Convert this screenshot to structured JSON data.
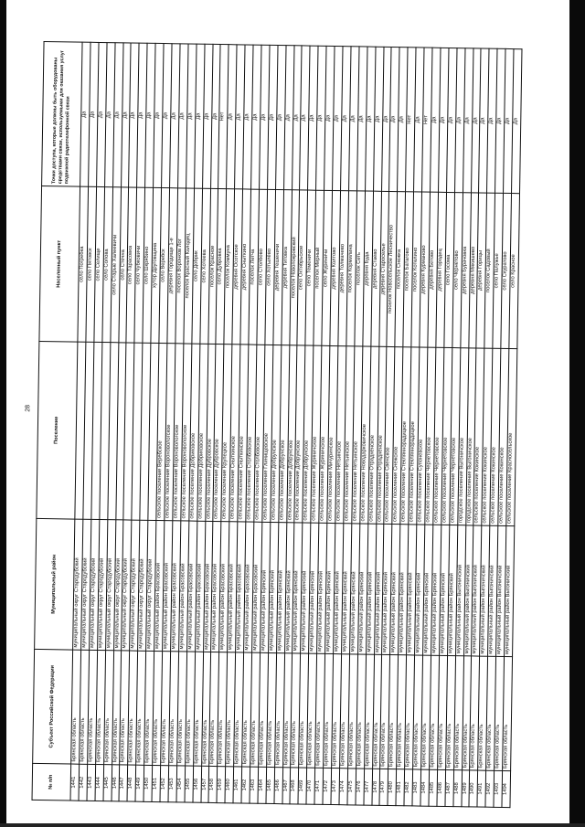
{
  "page_number": "28",
  "headers": {
    "num": "№ п/п",
    "subject": "Субъект Российской Федерации",
    "district": "Муниципальный район",
    "settlement": "Поселение",
    "locality": "Населенный пункт",
    "access": "Точки доступа, которые должны быть оборудованы средствами связи, используемыми для оказания услуг подвижной радиотелефонной связи"
  },
  "rows": [
    {
      "num": "1441",
      "subject": "Брянская область",
      "district": "муниципальный округ Стародубский",
      "settlement": "",
      "locality": "село Погребка",
      "answer": "Да"
    },
    {
      "num": "1442",
      "subject": "Брянская область",
      "district": "муниципальный округ Стародубский",
      "settlement": "",
      "locality": "село Пятовск",
      "answer": "Да"
    },
    {
      "num": "1443",
      "subject": "Брянская область",
      "district": "муниципальный округ Стародубский",
      "settlement": "",
      "locality": "село Селище",
      "answer": "Да"
    },
    {
      "num": "1444",
      "subject": "Брянская область",
      "district": "муниципальный округ Стародубский",
      "settlement": "",
      "locality": "село Солова",
      "answer": "Да"
    },
    {
      "num": "1445",
      "subject": "Брянская область",
      "district": "муниципальный округ Стародубский",
      "settlement": "",
      "locality": "село Старые Халеевичи",
      "answer": "Да"
    },
    {
      "num": "1446",
      "subject": "Брянская область",
      "district": "муниципальный округ Стародубский",
      "settlement": "",
      "locality": "село Стечна",
      "answer": "Да"
    },
    {
      "num": "1447",
      "subject": "Брянская область",
      "district": "муниципальный округ Стародубский",
      "settlement": "",
      "locality": "село Тарасовка",
      "answer": "Да"
    },
    {
      "num": "1448",
      "subject": "Брянская область",
      "district": "муниципальный округ Стародубский",
      "settlement": "",
      "locality": "село Чубковичи",
      "answer": "Да"
    },
    {
      "num": "1449",
      "subject": "Брянская область",
      "district": "муниципальный округ Стародубский",
      "settlement": "",
      "locality": "село Шкрябино",
      "answer": "Да"
    },
    {
      "num": "1450",
      "subject": "Брянская область",
      "district": "муниципальный округ Стародубский",
      "settlement": "",
      "locality": "хутор Друговщина",
      "answer": "Да"
    },
    {
      "num": "1451",
      "subject": "Брянская область",
      "district": "муниципальный район Брасовский",
      "settlement": "сельское поселение Веребское",
      "locality": "село Веребск",
      "answer": "Да"
    },
    {
      "num": "1452",
      "subject": "Брянская область",
      "district": "муниципальный район Брасовский",
      "settlement": "сельское поселение Вороновологское",
      "locality": "деревня Городище 1-е",
      "answer": "Да"
    },
    {
      "num": "1453",
      "subject": "Брянская область",
      "district": "муниципальный район Брасовский",
      "settlement": "сельское поселение Вороновологское",
      "locality": "поселок Воронков Лог",
      "answer": "Да"
    },
    {
      "num": "1454",
      "subject": "Брянская область",
      "district": "муниципальный район Брасовский",
      "settlement": "сельское поселение Вороновологское",
      "locality": "поселок Красный Колодец",
      "answer": "Да"
    },
    {
      "num": "1455",
      "subject": "Брянская область",
      "district": "муниципальный район Брасовский",
      "settlement": "сельское поселение Добриковское",
      "locality": "село Добрик",
      "answer": "Да"
    },
    {
      "num": "1456",
      "subject": "Брянская область",
      "district": "муниципальный район Брасовский",
      "settlement": "сельское поселение Добриковское",
      "locality": "село Хотеева",
      "answer": "Да"
    },
    {
      "num": "1457",
      "subject": "Брянская область",
      "district": "муниципальный район Брасовский",
      "settlement": "сельское поселение Дубровское",
      "locality": "поселок Красное",
      "answer": "Да"
    },
    {
      "num": "1458",
      "subject": "Брянская область",
      "district": "муниципальный район Брасовский",
      "settlement": "сельское поселение Дубровское",
      "locality": "село Дубровка",
      "answer": "Нет"
    },
    {
      "num": "1459",
      "subject": "Брянская область",
      "district": "муниципальный район Брасовский",
      "settlement": "сельское поселение Крупецкое",
      "locality": "поселок Коммуна",
      "answer": "Да"
    },
    {
      "num": "1460",
      "subject": "Брянская область",
      "district": "муниципальный район Брасовский",
      "settlement": "сельское поселение Сныткинское",
      "locality": "деревня Осотское",
      "answer": "Да"
    },
    {
      "num": "1461",
      "subject": "Брянская область",
      "district": "муниципальный район Брасовский",
      "settlement": "сельское поселение Сныткинское",
      "locality": "деревня Сныткино",
      "answer": "Да"
    },
    {
      "num": "1462",
      "subject": "Брянская область",
      "district": "муниципальный район Брасовский",
      "settlement": "сельское поселение Столбовское",
      "locality": "поселок Летча",
      "answer": "Да"
    },
    {
      "num": "1463",
      "subject": "Брянская область",
      "district": "муниципальный район Брасовский",
      "settlement": "сельское поселение Столбовское",
      "locality": "село Столбово",
      "answer": "Да"
    },
    {
      "num": "1464",
      "subject": "Брянская область",
      "district": "муниципальный район Брянский",
      "settlement": "сельское поселение Глинищевское",
      "locality": "село Хотылёво",
      "answer": "Да"
    },
    {
      "num": "1465",
      "subject": "Брянская область",
      "district": "муниципальный район Брянский",
      "settlement": "сельское поселение Добрунское",
      "locality": "деревня Тешеничи",
      "answer": "Да"
    },
    {
      "num": "1466",
      "subject": "Брянская область",
      "district": "муниципальный район Брянский",
      "settlement": "сельское поселение Добрунское",
      "locality": "деревня Титовка",
      "answer": "Да"
    },
    {
      "num": "1467",
      "subject": "Брянская область",
      "district": "муниципальный район Брянский",
      "settlement": "сельское поселение Добрунское",
      "locality": "поселок Новопокровский",
      "answer": "Да"
    },
    {
      "num": "1468",
      "subject": "Брянская область",
      "district": "муниципальный район Брянский",
      "settlement": "сельское поселение Добрунское",
      "locality": "село Октябрьское",
      "answer": "Да"
    },
    {
      "num": "1469",
      "subject": "Брянская область",
      "district": "муниципальный район Брянский",
      "settlement": "сельское поселение Добрунское",
      "locality": "село Теменичи",
      "answer": "Да"
    },
    {
      "num": "1470",
      "subject": "Брянская область",
      "district": "муниципальный район Брянский",
      "settlement": "сельское поселение Журиничское",
      "locality": "поселок Мирный",
      "answer": "Да"
    },
    {
      "num": "1471",
      "subject": "Брянская область",
      "district": "муниципальный район Брянский",
      "settlement": "сельское поселение Журиничское",
      "locality": "село Журиничи",
      "answer": "Да"
    },
    {
      "num": "1472",
      "subject": "Брянская область",
      "district": "муниципальный район Брянский",
      "settlement": "сельское поселение Мичуринское",
      "locality": "деревня Колтово",
      "answer": "Да"
    },
    {
      "num": "1473",
      "subject": "Брянская область",
      "district": "муниципальный район Брянский",
      "settlement": "сельское поселение Нетьинское",
      "locality": "деревня Толмачево",
      "answer": "Да"
    },
    {
      "num": "1474",
      "subject": "Брянская область",
      "district": "муниципальный район Брянский",
      "settlement": "сельское поселение Нетьинское",
      "locality": "поселок Кормилина",
      "answer": "Да"
    },
    {
      "num": "1475",
      "subject": "Брянская область",
      "district": "муниципальный район Брянский",
      "settlement": "сельское поселение Нетьинское",
      "locality": "поселок Сеть",
      "answer": "Да"
    },
    {
      "num": "1476",
      "subject": "Брянская область",
      "district": "муниципальный район Брянский",
      "settlement": "сельское поселение Новодарковичское",
      "locality": "деревня Буда",
      "answer": "Да"
    },
    {
      "num": "1477",
      "subject": "Брянская область",
      "district": "муниципальный район Брянский",
      "settlement": "сельское поселение Отрадненское",
      "locality": "деревня Стаево",
      "answer": "Да"
    },
    {
      "num": "1478",
      "subject": "Брянская область",
      "district": "муниципальный район Брянский",
      "settlement": "сельское поселение Отрадненское",
      "locality": "деревня Староселье",
      "answer": "Да"
    },
    {
      "num": "1479",
      "subject": "Брянская область",
      "district": "муниципальный район Брянский",
      "settlement": "сельское поселение Свенское",
      "locality": "поселок Новосельское Лесничество",
      "answer": "Да"
    },
    {
      "num": "1480",
      "subject": "Брянская область",
      "district": "муниципальный район Брянский",
      "settlement": "сельское поселение Снежское",
      "locality": "поселок Снежка",
      "answer": "Да"
    },
    {
      "num": "1481",
      "subject": "Брянская область",
      "district": "муниципальный район Брянский",
      "settlement": "сельское поселение Стекляннорадицкое",
      "locality": "поселок Батагово",
      "answer": "Нет"
    },
    {
      "num": "1482",
      "subject": "Брянская область",
      "district": "муниципальный район Брянский",
      "settlement": "сельское поселение Стекляннорадицкое",
      "locality": "поселок Котелино",
      "answer": "Да"
    },
    {
      "num": "1483",
      "subject": "Брянская область",
      "district": "муниципальный район Брянский",
      "settlement": "сельское поселение Супоневское",
      "locality": "деревня Курманово",
      "answer": "Нет"
    },
    {
      "num": "1484",
      "subject": "Брянская область",
      "district": "муниципальный район Брянский",
      "settlement": "сельское поселение Чернетовское",
      "locality": "деревня Бетово",
      "answer": "Да"
    },
    {
      "num": "1485",
      "subject": "Брянская область",
      "district": "муниципальный район Брянский",
      "settlement": "сельское поселение Чернетовское",
      "locality": "деревня Городец",
      "answer": "Да"
    },
    {
      "num": "1486",
      "subject": "Брянская область",
      "district": "муниципальный район Брянский",
      "settlement": "сельское поселение Чернетовское",
      "locality": "село Госома",
      "answer": "Да"
    },
    {
      "num": "1487",
      "subject": "Брянская область",
      "district": "муниципальный район Брянский",
      "settlement": "сельское поселение Чернетовское",
      "locality": "село Чернетово",
      "answer": "Да"
    },
    {
      "num": "1488",
      "subject": "Брянская область",
      "district": "муниципальный район Выгоничский",
      "settlement": "городское поселение Выгоничское",
      "locality": "деревня Бурачовка",
      "answer": "Да"
    },
    {
      "num": "1489",
      "subject": "Брянская область",
      "district": "муниципальный район Выгоничский",
      "settlement": "городское поселение Выгоничское",
      "locality": "деревня Мякишево",
      "answer": "Да"
    },
    {
      "num": "1490",
      "subject": "Брянская область",
      "district": "муниципальный район Выгоничский",
      "settlement": "сельское поселение Кокинское",
      "locality": "деревня Горицы",
      "answer": "Да"
    },
    {
      "num": "1491",
      "subject": "Брянская область",
      "district": "муниципальный район Выгоничский",
      "settlement": "сельское поселение Кокинское",
      "locality": "поселок Садовый",
      "answer": "Да"
    },
    {
      "num": "1492",
      "subject": "Брянская область",
      "district": "муниципальный район Выгоничский",
      "settlement": "сельское поселение Кокинское",
      "locality": "село Палужье",
      "answer": "Да"
    },
    {
      "num": "1493",
      "subject": "Брянская область",
      "district": "муниципальный район Выгоничский",
      "settlement": "сельское поселение Кокинское",
      "locality": "село Скуратово",
      "answer": "Да"
    },
    {
      "num": "1494",
      "subject": "Брянская область",
      "district": "муниципальный район Выгоничский",
      "settlement": "сельское поселение Красносельское",
      "locality": "село Красное",
      "answer": "Да"
    }
  ]
}
